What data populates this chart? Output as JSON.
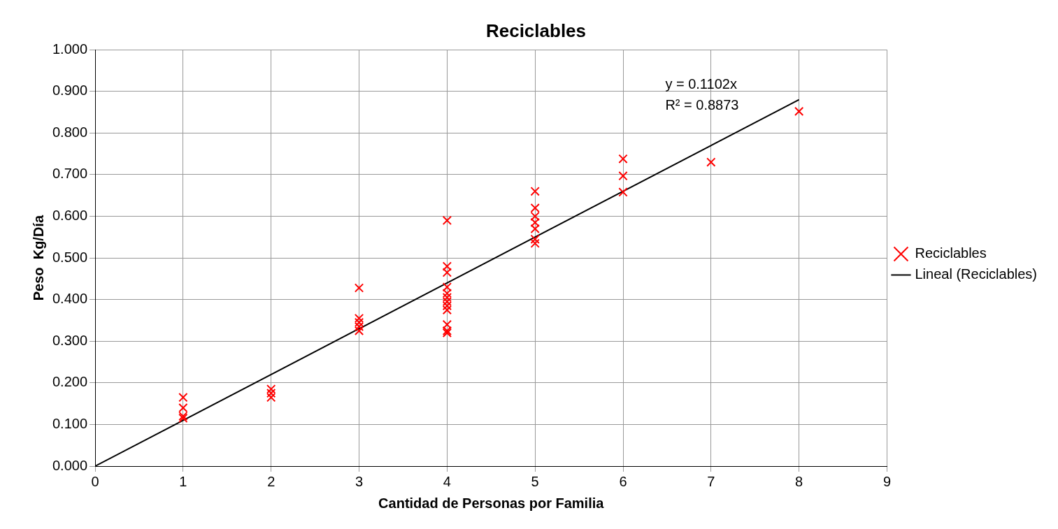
{
  "chart_data": {
    "type": "scatter",
    "title": "Reciclables",
    "xlabel": "Cantidad de Personas por Familia",
    "ylabel": "Peso  Kg/Día",
    "xlim": [
      0,
      9
    ],
    "xticks": [
      0,
      1,
      2,
      3,
      4,
      5,
      6,
      7,
      8,
      9
    ],
    "ylim": [
      0,
      1
    ],
    "yticks": [
      {
        "value": 0,
        "label": "0.000"
      },
      {
        "value": 0.1,
        "label": "0.100"
      },
      {
        "value": 0.2,
        "label": "0.200"
      },
      {
        "value": 0.3,
        "label": "0.300"
      },
      {
        "value": 0.4,
        "label": "0.400"
      },
      {
        "value": 0.5,
        "label": "0.500"
      },
      {
        "value": 0.6,
        "label": "0.600"
      },
      {
        "value": 0.7,
        "label": "0.700"
      },
      {
        "value": 0.8,
        "label": "0.800"
      },
      {
        "value": 0.9,
        "label": "0.900"
      },
      {
        "value": 1,
        "label": "1.000"
      }
    ],
    "grid": true,
    "legend": "right",
    "marker": "cross",
    "series": [
      {
        "name": "Reciclables",
        "color": "#ff0000",
        "x": [
          1,
          1,
          1,
          1,
          2,
          2,
          2,
          3,
          3,
          3,
          3,
          3,
          4,
          4,
          4,
          4,
          4,
          4,
          4,
          4,
          4,
          4,
          4,
          4,
          5,
          5,
          5,
          5,
          5,
          5,
          5,
          6,
          6,
          6,
          7,
          8
        ],
        "values": [
          0.165,
          0.14,
          0.12,
          0.115,
          0.185,
          0.175,
          0.165,
          0.428,
          0.355,
          0.345,
          0.335,
          0.325,
          0.59,
          0.48,
          0.465,
          0.43,
          0.415,
          0.405,
          0.395,
          0.385,
          0.375,
          0.34,
          0.325,
          0.32,
          0.66,
          0.62,
          0.6,
          0.585,
          0.57,
          0.545,
          0.535,
          0.738,
          0.697,
          0.658,
          0.73,
          0.852
        ]
      },
      {
        "name": "Lineal (Reciclables)",
        "type": "line",
        "color": "#000000",
        "marker": "none",
        "x": [
          0,
          8
        ],
        "values": [
          0,
          0.88
        ]
      }
    ],
    "annotations": [
      "y = 0.1102x",
      "R² = 0.8873"
    ]
  }
}
